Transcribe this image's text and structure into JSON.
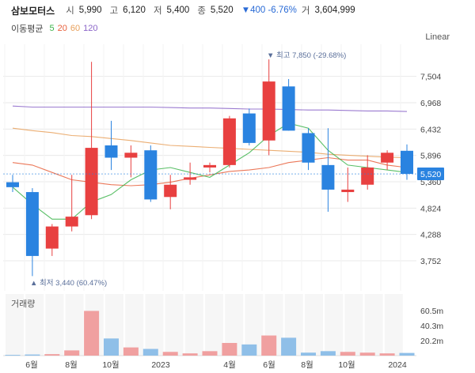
{
  "header": {
    "stock_name": "삼보모터스",
    "open_label": "시",
    "open_value": "5,990",
    "high_label": "고",
    "high_value": "6,120",
    "low_label": "저",
    "low_value": "5,400",
    "close_label": "종",
    "close_value": "5,520",
    "change_text": "▼400 -6.76%",
    "volume_label": "거",
    "volume_value": "3,604,999"
  },
  "ma": {
    "title": "이동평균",
    "periods": [
      {
        "label": "5",
        "color": "#3cb44b"
      },
      {
        "label": "20",
        "color": "#e8603c"
      },
      {
        "label": "60",
        "color": "#e8a05a"
      },
      {
        "label": "120",
        "color": "#8a64c8"
      }
    ]
  },
  "scale_button": "Linear",
  "volume_title": "거래량",
  "colors": {
    "up": "#e84040",
    "down": "#2a83e0",
    "up_volume": "#f0a0a0",
    "down_volume": "#8fbfe8",
    "grid": "#e9e9e9"
  },
  "chart_data": {
    "type": "candlestick",
    "price_axis": {
      "ticks": [
        3752,
        4288,
        4824,
        5360,
        5896,
        6432,
        6968,
        7504
      ]
    },
    "volume_axis": {
      "ticks": [
        "20.2m",
        "40.3m",
        "60.5m"
      ],
      "tick_values": [
        20.2,
        40.3,
        60.5
      ],
      "unit": "m"
    },
    "x_labels": [
      "6월",
      "8월",
      "10월",
      "2023",
      "4월",
      "6월",
      "8월",
      "10월",
      "2024"
    ],
    "current_price_label": "5,520",
    "annotations": {
      "high": {
        "text": "▼ 최고 7,850 (-29.68%)",
        "value": 7850
      },
      "low": {
        "text": "▲ 최저 3,440 (60.47%)",
        "value": 3440
      }
    },
    "candles": [
      {
        "o": 5350,
        "h": 5500,
        "l": 5150,
        "c": 5250,
        "v": 1.0
      },
      {
        "o": 5150,
        "h": 5230,
        "l": 3440,
        "c": 3850,
        "v": 1.5
      },
      {
        "o": 4000,
        "h": 4500,
        "l": 3850,
        "c": 4450,
        "v": 2.0
      },
      {
        "o": 4450,
        "h": 5500,
        "l": 4350,
        "c": 4650,
        "v": 7.0
      },
      {
        "o": 4680,
        "h": 7800,
        "l": 4600,
        "c": 6050,
        "v": 60.0
      },
      {
        "o": 6100,
        "h": 6600,
        "l": 5600,
        "c": 5850,
        "v": 23.0
      },
      {
        "o": 5850,
        "h": 6100,
        "l": 5450,
        "c": 5950,
        "v": 11.0
      },
      {
        "o": 6000,
        "h": 6100,
        "l": 4950,
        "c": 5000,
        "v": 9.0
      },
      {
        "o": 5050,
        "h": 5500,
        "l": 4800,
        "c": 5300,
        "v": 5.0
      },
      {
        "o": 5400,
        "h": 5750,
        "l": 5300,
        "c": 5450,
        "v": 3.0
      },
      {
        "o": 5650,
        "h": 5750,
        "l": 5550,
        "c": 5700,
        "v": 6.0
      },
      {
        "o": 5700,
        "h": 6700,
        "l": 5650,
        "c": 6650,
        "v": 17.0
      },
      {
        "o": 6750,
        "h": 6850,
        "l": 6100,
        "c": 6150,
        "v": 15.0
      },
      {
        "o": 6200,
        "h": 7850,
        "l": 5900,
        "c": 7400,
        "v": 27.0
      },
      {
        "o": 7300,
        "h": 7450,
        "l": 6400,
        "c": 6400,
        "v": 24.0
      },
      {
        "o": 6350,
        "h": 6450,
        "l": 5600,
        "c": 5750,
        "v": 4.0
      },
      {
        "o": 5700,
        "h": 6450,
        "l": 4750,
        "c": 5200,
        "v": 6.0
      },
      {
        "o": 5150,
        "h": 5650,
        "l": 4950,
        "c": 5200,
        "v": 5.0
      },
      {
        "o": 5300,
        "h": 5900,
        "l": 5200,
        "c": 5650,
        "v": 4.0
      },
      {
        "o": 5750,
        "h": 6000,
        "l": 5600,
        "c": 5950,
        "v": 3.0
      },
      {
        "o": 5990,
        "h": 6120,
        "l": 5400,
        "c": 5520,
        "v": 3.6
      }
    ],
    "ma5": [
      5250,
      4900,
      4600,
      4600,
      4950,
      5100,
      5400,
      5600,
      5650,
      5550,
      5450,
      5700,
      5950,
      6300,
      6550,
      6450,
      6000,
      5700,
      5650,
      5600,
      5550
    ],
    "ma20": [
      5750,
      5700,
      5550,
      5400,
      5350,
      5300,
      5280,
      5300,
      5350,
      5430,
      5500,
      5570,
      5600,
      5650,
      5750,
      5800,
      5850,
      5800,
      5800,
      5700,
      5650
    ],
    "ma60": [
      6450,
      6400,
      6360,
      6300,
      6280,
      6240,
      6200,
      6150,
      6100,
      6080,
      6060,
      6040,
      6020,
      6000,
      5980,
      5960,
      5920,
      5900,
      5880,
      5860,
      5850
    ],
    "ma120": [
      6900,
      6880,
      6880,
      6880,
      6880,
      6880,
      6880,
      6880,
      6870,
      6860,
      6860,
      6850,
      6840,
      6840,
      6830,
      6820,
      6820,
      6810,
      6800,
      6800,
      6790
    ]
  }
}
